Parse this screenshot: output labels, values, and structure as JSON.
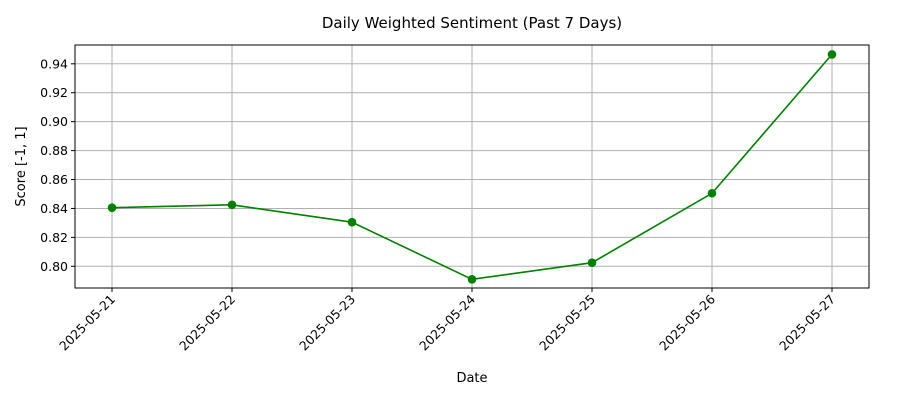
{
  "chart_data": {
    "type": "line",
    "title": "Daily Weighted Sentiment (Past 7 Days)",
    "xlabel": "Date",
    "ylabel": "Score [-1, 1]",
    "categories": [
      "2025-05-21",
      "2025-05-22",
      "2025-05-23",
      "2025-05-24",
      "2025-05-25",
      "2025-05-26",
      "2025-05-27"
    ],
    "series": [
      {
        "color": "#008000",
        "marker": "circle",
        "values": [
          0.8405,
          0.8425,
          0.8305,
          0.791,
          0.8025,
          0.8505,
          0.9465
        ]
      }
    ],
    "ylim": [
      0.785,
      0.953
    ],
    "yticks": [
      0.8,
      0.82,
      0.84,
      0.86,
      0.88,
      0.9,
      0.92,
      0.94
    ],
    "ytick_labels": [
      "0.80",
      "0.82",
      "0.84",
      "0.86",
      "0.88",
      "0.90",
      "0.92",
      "0.94"
    ],
    "grid": true,
    "xtick_rotation": 45
  }
}
